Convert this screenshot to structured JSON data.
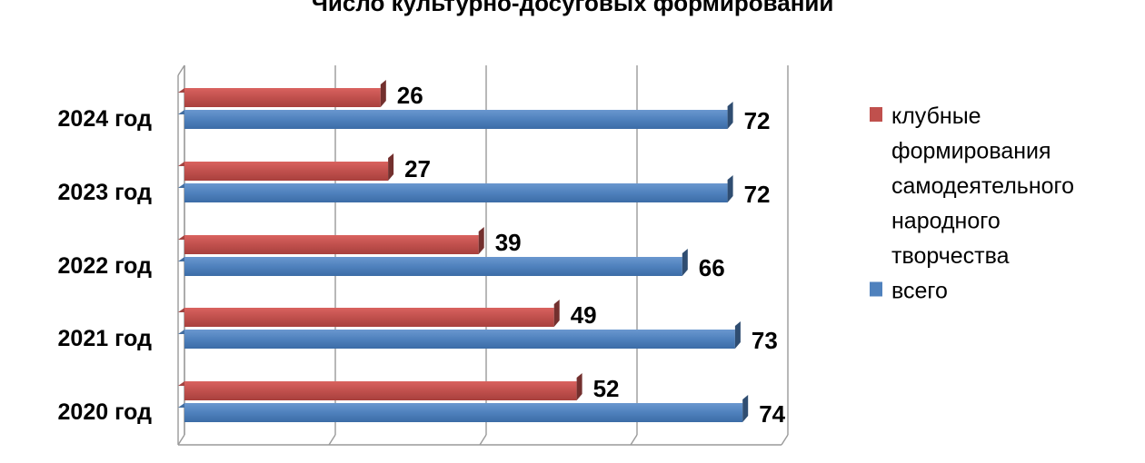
{
  "chart_data": {
    "type": "bar",
    "orientation": "horizontal",
    "title": "Число культурно-досуговых формирований",
    "categories": [
      "2024 год",
      "2023 год",
      "2022 год",
      "2021 год",
      "2020 год"
    ],
    "series": [
      {
        "name": "клубные формирования самодеятельного народного творчества",
        "name_lines": [
          "клубные",
          "формирования",
          "самодеятельного",
          "народного",
          "творчества"
        ],
        "color": "#C0504D",
        "values": [
          26,
          27,
          39,
          49,
          52
        ]
      },
      {
        "name": "всего",
        "name_lines": [
          "всего"
        ],
        "color": "#4F81BD",
        "values": [
          72,
          72,
          66,
          73,
          74
        ]
      }
    ],
    "xlim": [
      0,
      80
    ],
    "grid": true,
    "legend_position": "right",
    "style": "3d"
  }
}
